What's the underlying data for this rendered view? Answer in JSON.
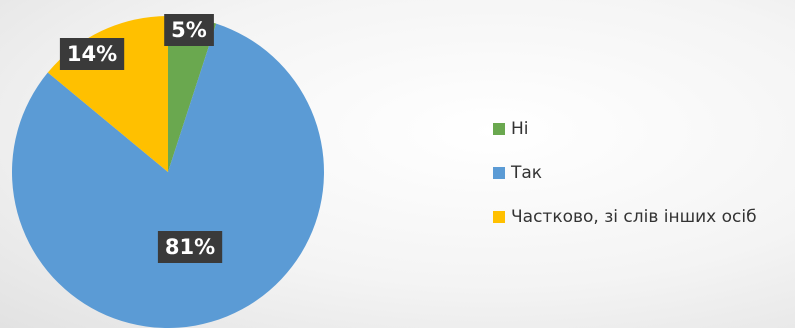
{
  "chart_data": {
    "type": "pie",
    "title": "",
    "categories": [
      "Ні",
      "Так",
      "Частково, зі слів інших осіб"
    ],
    "values": [
      5,
      81,
      14
    ],
    "data_labels": [
      "5%",
      "81%",
      "14%"
    ],
    "colors": [
      "#6aa84f",
      "#5b9bd5",
      "#ffc000"
    ],
    "start_angle_deg": 0,
    "direction": "clockwise",
    "legend_position": "right",
    "legend_marker": "square"
  }
}
